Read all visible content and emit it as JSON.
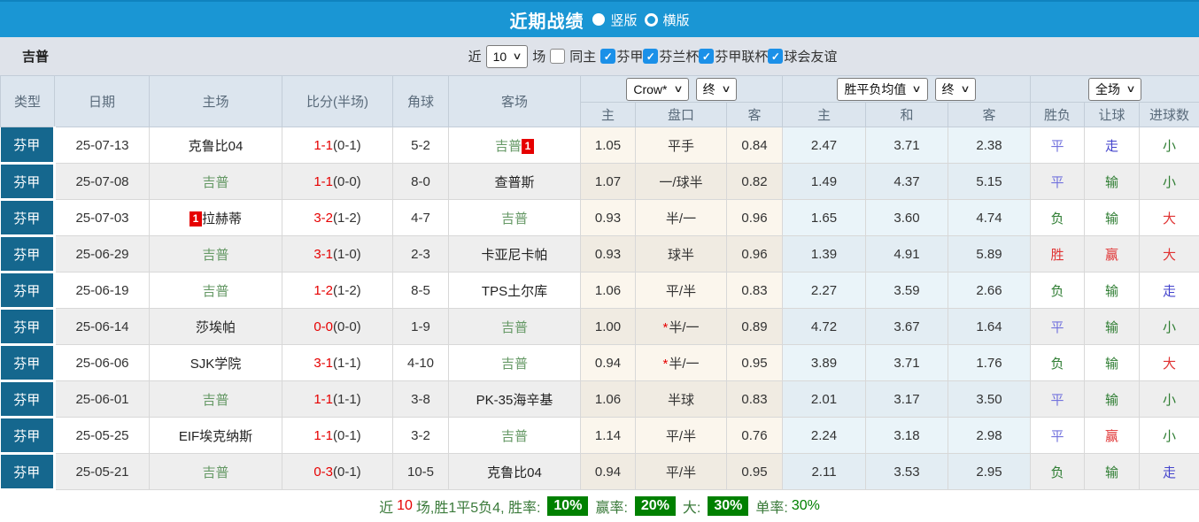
{
  "header": {
    "title": "近期战绩",
    "radio_vertical": "竖版",
    "radio_horizontal": "横版"
  },
  "filter": {
    "team": "吉普",
    "near_label": "近",
    "matches_value": "10",
    "matches_label": "场",
    "same_home_label": "同主",
    "leagues": [
      "芬甲",
      "芬兰杯",
      "芬甲联杯",
      "球会友谊"
    ]
  },
  "colors": {
    "header_blue": "#1a96d4",
    "type_cell_blue": "#15678e",
    "team_green": "#669966",
    "team_black": "#222222",
    "score_red": "#e60000",
    "badge_red": "#e60000",
    "badge_green": "#008000",
    "result_red": "#e03333",
    "result_green": "#2e7d32",
    "result_blue": "#7373dd",
    "result_walk_blue": "#4444cc"
  },
  "table": {
    "columns": {
      "type": "类型",
      "date": "日期",
      "home": "主场",
      "score": "比分(半场)",
      "corner": "角球",
      "away": "客场"
    },
    "odds_group": {
      "select_company": "Crow*",
      "select_time": "终",
      "sub_home": "主",
      "sub_handicap": "盘口",
      "sub_away": "客"
    },
    "mean_group": {
      "select_name": "胜平负均值",
      "select_time": "终",
      "sub_home": "主",
      "sub_draw": "和",
      "sub_away": "客"
    },
    "result_group": {
      "select_scope": "全场",
      "sub_wdl": "胜负",
      "sub_handicap": "让球",
      "sub_goals": "进球数"
    },
    "rows": [
      {
        "type": "芬甲",
        "date": "25-07-13",
        "home": {
          "name": "克鲁比04",
          "green": false,
          "badge": "",
          "badge_pos": ""
        },
        "ft": "1-1",
        "ht": "(0-1)",
        "corner": "5-2",
        "away": {
          "name": "吉普",
          "green": true,
          "badge": "1",
          "badge_pos": "after"
        },
        "odds_home": "1.05",
        "handicap": "平手",
        "star": false,
        "odds_away": "0.84",
        "mean": [
          "2.47",
          "3.71",
          "2.38"
        ],
        "results": [
          {
            "t": "平",
            "c": "result_blue"
          },
          {
            "t": "走",
            "c": "result_walk_blue"
          },
          {
            "t": "小",
            "c": "result_green"
          }
        ]
      },
      {
        "type": "芬甲",
        "date": "25-07-08",
        "home": {
          "name": "吉普",
          "green": true,
          "badge": "",
          "badge_pos": ""
        },
        "ft": "1-1",
        "ht": "(0-0)",
        "corner": "8-0",
        "away": {
          "name": "查普斯",
          "green": false,
          "badge": "",
          "badge_pos": ""
        },
        "odds_home": "1.07",
        "handicap": "一/球半",
        "star": false,
        "odds_away": "0.82",
        "mean": [
          "1.49",
          "4.37",
          "5.15"
        ],
        "results": [
          {
            "t": "平",
            "c": "result_blue"
          },
          {
            "t": "输",
            "c": "result_green"
          },
          {
            "t": "小",
            "c": "result_green"
          }
        ]
      },
      {
        "type": "芬甲",
        "date": "25-07-03",
        "home": {
          "name": "拉赫蒂",
          "green": false,
          "badge": "1",
          "badge_pos": "before"
        },
        "ft": "3-2",
        "ht": "(1-2)",
        "corner": "4-7",
        "away": {
          "name": "吉普",
          "green": true,
          "badge": "",
          "badge_pos": ""
        },
        "odds_home": "0.93",
        "handicap": "半/一",
        "star": false,
        "odds_away": "0.96",
        "mean": [
          "1.65",
          "3.60",
          "4.74"
        ],
        "results": [
          {
            "t": "负",
            "c": "result_green"
          },
          {
            "t": "输",
            "c": "result_green"
          },
          {
            "t": "大",
            "c": "result_red"
          }
        ]
      },
      {
        "type": "芬甲",
        "date": "25-06-29",
        "home": {
          "name": "吉普",
          "green": true,
          "badge": "",
          "badge_pos": ""
        },
        "ft": "3-1",
        "ht": "(1-0)",
        "corner": "2-3",
        "away": {
          "name": "卡亚尼卡帕",
          "green": false,
          "badge": "",
          "badge_pos": ""
        },
        "odds_home": "0.93",
        "handicap": "球半",
        "star": false,
        "odds_away": "0.96",
        "mean": [
          "1.39",
          "4.91",
          "5.89"
        ],
        "results": [
          {
            "t": "胜",
            "c": "result_red"
          },
          {
            "t": "赢",
            "c": "result_red"
          },
          {
            "t": "大",
            "c": "result_red"
          }
        ]
      },
      {
        "type": "芬甲",
        "date": "25-06-19",
        "home": {
          "name": "吉普",
          "green": true,
          "badge": "",
          "badge_pos": ""
        },
        "ft": "1-2",
        "ht": "(1-2)",
        "corner": "8-5",
        "away": {
          "name": "TPS土尔库",
          "green": false,
          "badge": "",
          "badge_pos": ""
        },
        "odds_home": "1.06",
        "handicap": "平/半",
        "star": false,
        "odds_away": "0.83",
        "mean": [
          "2.27",
          "3.59",
          "2.66"
        ],
        "results": [
          {
            "t": "负",
            "c": "result_green"
          },
          {
            "t": "输",
            "c": "result_green"
          },
          {
            "t": "走",
            "c": "result_walk_blue"
          }
        ]
      },
      {
        "type": "芬甲",
        "date": "25-06-14",
        "home": {
          "name": "莎埃帕",
          "green": false,
          "badge": "",
          "badge_pos": ""
        },
        "ft": "0-0",
        "ht": "(0-0)",
        "corner": "1-9",
        "away": {
          "name": "吉普",
          "green": true,
          "badge": "",
          "badge_pos": ""
        },
        "odds_home": "1.00",
        "handicap": "半/一",
        "star": true,
        "odds_away": "0.89",
        "mean": [
          "4.72",
          "3.67",
          "1.64"
        ],
        "results": [
          {
            "t": "平",
            "c": "result_blue"
          },
          {
            "t": "输",
            "c": "result_green"
          },
          {
            "t": "小",
            "c": "result_green"
          }
        ]
      },
      {
        "type": "芬甲",
        "date": "25-06-06",
        "home": {
          "name": "SJK学院",
          "green": false,
          "badge": "",
          "badge_pos": ""
        },
        "ft": "3-1",
        "ht": "(1-1)",
        "corner": "4-10",
        "away": {
          "name": "吉普",
          "green": true,
          "badge": "",
          "badge_pos": ""
        },
        "odds_home": "0.94",
        "handicap": "半/一",
        "star": true,
        "odds_away": "0.95",
        "mean": [
          "3.89",
          "3.71",
          "1.76"
        ],
        "results": [
          {
            "t": "负",
            "c": "result_green"
          },
          {
            "t": "输",
            "c": "result_green"
          },
          {
            "t": "大",
            "c": "result_red"
          }
        ]
      },
      {
        "type": "芬甲",
        "date": "25-06-01",
        "home": {
          "name": "吉普",
          "green": true,
          "badge": "",
          "badge_pos": ""
        },
        "ft": "1-1",
        "ht": "(1-1)",
        "corner": "3-8",
        "away": {
          "name": "PK-35海辛基",
          "green": false,
          "badge": "",
          "badge_pos": ""
        },
        "odds_home": "1.06",
        "handicap": "半球",
        "star": false,
        "odds_away": "0.83",
        "mean": [
          "2.01",
          "3.17",
          "3.50"
        ],
        "results": [
          {
            "t": "平",
            "c": "result_blue"
          },
          {
            "t": "输",
            "c": "result_green"
          },
          {
            "t": "小",
            "c": "result_green"
          }
        ]
      },
      {
        "type": "芬甲",
        "date": "25-05-25",
        "home": {
          "name": "EIF埃克纳斯",
          "green": false,
          "badge": "",
          "badge_pos": ""
        },
        "ft": "1-1",
        "ht": "(0-1)",
        "corner": "3-2",
        "away": {
          "name": "吉普",
          "green": true,
          "badge": "",
          "badge_pos": ""
        },
        "odds_home": "1.14",
        "handicap": "平/半",
        "star": false,
        "odds_away": "0.76",
        "mean": [
          "2.24",
          "3.18",
          "2.98"
        ],
        "results": [
          {
            "t": "平",
            "c": "result_blue"
          },
          {
            "t": "赢",
            "c": "result_red"
          },
          {
            "t": "小",
            "c": "result_green"
          }
        ]
      },
      {
        "type": "芬甲",
        "date": "25-05-21",
        "home": {
          "name": "吉普",
          "green": true,
          "badge": "",
          "badge_pos": ""
        },
        "ft": "0-3",
        "ht": "(0-1)",
        "corner": "10-5",
        "away": {
          "name": "克鲁比04",
          "green": false,
          "badge": "",
          "badge_pos": ""
        },
        "odds_home": "0.94",
        "handicap": "平/半",
        "star": false,
        "odds_away": "0.95",
        "mean": [
          "2.11",
          "3.53",
          "2.95"
        ],
        "results": [
          {
            "t": "负",
            "c": "result_green"
          },
          {
            "t": "输",
            "c": "result_green"
          },
          {
            "t": "走",
            "c": "result_walk_blue"
          }
        ]
      }
    ]
  },
  "footer": {
    "prefix": "近",
    "count": "10",
    "middle": "场,胜1平5负4, 胜率:",
    "rate1": "10%",
    "label2": "赢率:",
    "rate2": "20%",
    "label3": "大:",
    "rate3": "30%",
    "label4": "单率:",
    "rate4": "30%"
  }
}
